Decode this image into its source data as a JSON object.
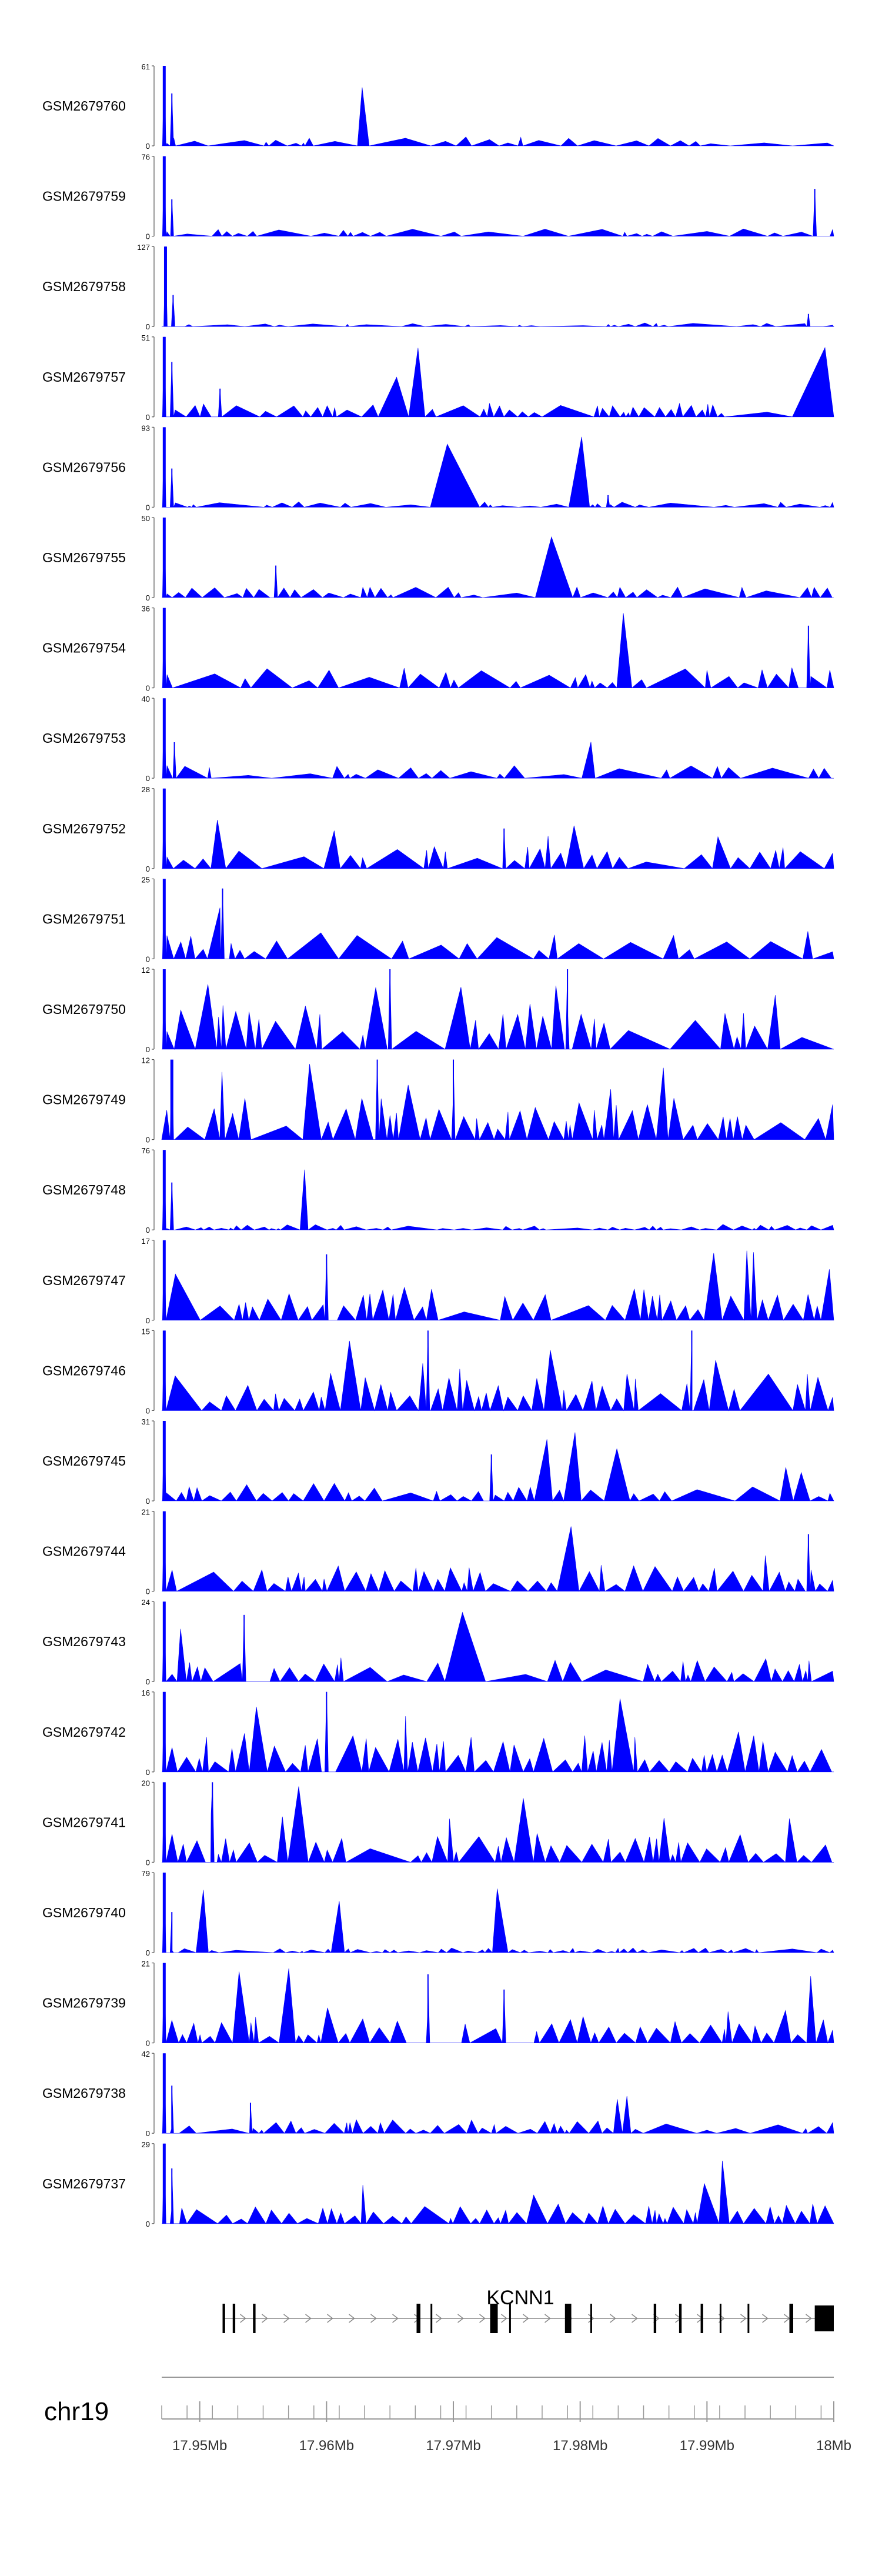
{
  "chart_data": {
    "type": "area",
    "title": "",
    "x_unit": "Mb",
    "xlim": [
      17.947,
      18.0
    ],
    "chromosome": "chr19",
    "gene": "KCNN1",
    "color": "#0000ff",
    "axis_ticks": [
      17.95,
      17.96,
      17.97,
      17.98,
      17.99,
      18.0
    ],
    "axis_labels": [
      "17.95Mb",
      "17.96Mb",
      "17.97Mb",
      "17.98Mb",
      "17.99Mb",
      "18Mb"
    ],
    "tracks": [
      {
        "name": "GSM2679760",
        "ymax": "61",
        "ymin": "0",
        "ymax_value": 61,
        "peak_frac": 0.1,
        "density": 0.55,
        "spike_frac": 0.05,
        "seed": 1,
        "peaks": [
          [
            17.9472,
            61
          ],
          [
            17.9478,
            40
          ]
        ]
      },
      {
        "name": "GSM2679759",
        "ymax": "76",
        "ymin": "0",
        "ymax_value": 76,
        "peak_frac": 0.08,
        "density": 0.65,
        "spike_frac": 0.05,
        "seed": 2,
        "peaks": [
          [
            17.9472,
            76
          ],
          [
            17.9478,
            35
          ],
          [
            17.9985,
            45
          ]
        ]
      },
      {
        "name": "GSM2679758",
        "ymax": "127",
        "ymin": "0",
        "ymax_value": 127,
        "peak_frac": 0.04,
        "density": 0.35,
        "spike_frac": 0.04,
        "seed": 3,
        "peaks": [
          [
            17.9473,
            127
          ],
          [
            17.9479,
            50
          ],
          [
            17.998,
            20
          ]
        ]
      },
      {
        "name": "GSM2679757",
        "ymax": "51",
        "ymin": "0",
        "ymax_value": 51,
        "peak_frac": 0.16,
        "density": 0.75,
        "spike_frac": 0.08,
        "seed": 4,
        "peaks": [
          [
            17.9472,
            51
          ],
          [
            17.9478,
            35
          ],
          [
            17.9516,
            18
          ]
        ]
      },
      {
        "name": "GSM2679756",
        "ymax": "93",
        "ymin": "0",
        "ymax_value": 93,
        "peak_frac": 0.06,
        "density": 0.7,
        "spike_frac": 0.04,
        "seed": 5,
        "peaks": [
          [
            17.9472,
            93
          ],
          [
            17.9478,
            45
          ],
          [
            17.9822,
            14
          ]
        ]
      },
      {
        "name": "GSM2679755",
        "ymax": "50",
        "ymin": "0",
        "ymax_value": 50,
        "peak_frac": 0.12,
        "density": 0.75,
        "spike_frac": 0.07,
        "seed": 6,
        "peaks": [
          [
            17.9472,
            50
          ],
          [
            17.956,
            20
          ]
        ]
      },
      {
        "name": "GSM2679754",
        "ymax": "36",
        "ymin": "0",
        "ymax_value": 36,
        "peak_frac": 0.22,
        "density": 0.65,
        "spike_frac": 0.09,
        "seed": 7,
        "peaks": [
          [
            17.9472,
            36
          ],
          [
            17.998,
            28
          ]
        ]
      },
      {
        "name": "GSM2679753",
        "ymax": "40",
        "ymin": "0",
        "ymax_value": 40,
        "peak_frac": 0.14,
        "density": 0.7,
        "spike_frac": 0.08,
        "seed": 8,
        "peaks": [
          [
            17.9472,
            40
          ],
          [
            17.948,
            18
          ]
        ]
      },
      {
        "name": "GSM2679752",
        "ymax": "28",
        "ymin": "0",
        "ymax_value": 28,
        "peak_frac": 0.24,
        "density": 0.7,
        "spike_frac": 0.1,
        "seed": 9,
        "peaks": [
          [
            17.9472,
            28
          ],
          [
            17.974,
            14
          ]
        ]
      },
      {
        "name": "GSM2679751",
        "ymax": "25",
        "ymin": "0",
        "ymax_value": 25,
        "peak_frac": 0.3,
        "density": 0.4,
        "spike_frac": 0.1,
        "seed": 10,
        "peaks": [
          [
            17.9472,
            25
          ],
          [
            17.9518,
            22
          ]
        ]
      },
      {
        "name": "GSM2679750",
        "ymax": "12",
        "ymin": "0",
        "ymax_value": 12,
        "peak_frac": 0.5,
        "density": 0.85,
        "spike_frac": 0.2,
        "seed": 11,
        "peaks": [
          [
            17.9472,
            12
          ],
          [
            17.965,
            12
          ],
          [
            17.979,
            12
          ]
        ]
      },
      {
        "name": "GSM2679749",
        "ymax": "12",
        "ymin": "0",
        "ymax_value": 12,
        "peak_frac": 0.45,
        "density": 0.85,
        "spike_frac": 0.2,
        "seed": 12,
        "peaks": [
          [
            17.9478,
            12
          ],
          [
            17.964,
            12
          ],
          [
            17.97,
            12
          ]
        ]
      },
      {
        "name": "GSM2679748",
        "ymax": "76",
        "ymin": "0",
        "ymax_value": 76,
        "peak_frac": 0.06,
        "density": 0.85,
        "spike_frac": 0.04,
        "seed": 13,
        "peaks": [
          [
            17.9472,
            76
          ],
          [
            17.9478,
            45
          ]
        ]
      },
      {
        "name": "GSM2679747",
        "ymax": "17",
        "ymin": "0",
        "ymax_value": 17,
        "peak_frac": 0.35,
        "density": 0.85,
        "spike_frac": 0.15,
        "seed": 14,
        "peaks": [
          [
            17.9472,
            17
          ],
          [
            17.96,
            14
          ]
        ]
      },
      {
        "name": "GSM2679746",
        "ymax": "15",
        "ymin": "0",
        "ymax_value": 15,
        "peak_frac": 0.42,
        "density": 0.8,
        "spike_frac": 0.15,
        "seed": 15,
        "peaks": [
          [
            17.9472,
            15
          ],
          [
            17.968,
            15
          ],
          [
            17.9888,
            15
          ]
        ]
      },
      {
        "name": "GSM2679745",
        "ymax": "31",
        "ymin": "0",
        "ymax_value": 31,
        "peak_frac": 0.2,
        "density": 0.8,
        "spike_frac": 0.09,
        "seed": 16,
        "peaks": [
          [
            17.9472,
            31
          ],
          [
            17.973,
            18
          ]
        ]
      },
      {
        "name": "GSM2679744",
        "ymax": "21",
        "ymin": "0",
        "ymax_value": 21,
        "peak_frac": 0.3,
        "density": 0.8,
        "spike_frac": 0.12,
        "seed": 17,
        "peaks": [
          [
            17.9472,
            21
          ],
          [
            17.998,
            15
          ]
        ]
      },
      {
        "name": "GSM2679743",
        "ymax": "24",
        "ymin": "0",
        "ymax_value": 24,
        "peak_frac": 0.26,
        "density": 0.75,
        "spike_frac": 0.1,
        "seed": 18,
        "peaks": [
          [
            17.9472,
            24
          ],
          [
            17.9535,
            20
          ]
        ]
      },
      {
        "name": "GSM2679742",
        "ymax": "16",
        "ymin": "0",
        "ymax_value": 16,
        "peak_frac": 0.42,
        "density": 0.9,
        "spike_frac": 0.18,
        "seed": 19,
        "peaks": [
          [
            17.9472,
            16
          ],
          [
            17.96,
            16
          ]
        ]
      },
      {
        "name": "GSM2679741",
        "ymax": "20",
        "ymin": "0",
        "ymax_value": 20,
        "peak_frac": 0.32,
        "density": 0.9,
        "spike_frac": 0.15,
        "seed": 20,
        "peaks": [
          [
            17.9472,
            20
          ],
          [
            17.951,
            20
          ]
        ]
      },
      {
        "name": "GSM2679740",
        "ymax": "79",
        "ymin": "0",
        "ymax_value": 79,
        "peak_frac": 0.05,
        "density": 0.8,
        "spike_frac": 0.04,
        "seed": 21,
        "peaks": [
          [
            17.9472,
            79
          ],
          [
            17.9478,
            40
          ]
        ]
      },
      {
        "name": "GSM2679739",
        "ymax": "21",
        "ymin": "0",
        "ymax_value": 21,
        "peak_frac": 0.3,
        "density": 0.85,
        "spike_frac": 0.12,
        "seed": 22,
        "peaks": [
          [
            17.9472,
            21
          ],
          [
            17.968,
            18
          ],
          [
            17.974,
            14
          ]
        ]
      },
      {
        "name": "GSM2679738",
        "ymax": "42",
        "ymin": "0",
        "ymax_value": 42,
        "peak_frac": 0.15,
        "density": 0.85,
        "spike_frac": 0.08,
        "seed": 23,
        "peaks": [
          [
            17.9472,
            42
          ],
          [
            17.9478,
            25
          ],
          [
            17.954,
            16
          ]
        ]
      },
      {
        "name": "GSM2679737",
        "ymax": "29",
        "ymin": "0",
        "ymax_value": 29,
        "peak_frac": 0.22,
        "density": 0.85,
        "spike_frac": 0.1,
        "seed": 24,
        "peaks": [
          [
            17.9472,
            29
          ],
          [
            17.9478,
            20
          ]
        ]
      }
    ],
    "gene_model": {
      "strand": "+",
      "start": 17.9518,
      "end": 18.0,
      "exons": [
        [
          17.9518,
          17.952
        ],
        [
          17.9526,
          17.9528
        ],
        [
          17.9542,
          17.9544
        ],
        [
          17.9671,
          17.9674
        ],
        [
          17.9682,
          17.9683
        ],
        [
          17.9729,
          17.9735
        ],
        [
          17.9744,
          17.9745
        ],
        [
          17.9788,
          17.9793
        ],
        [
          17.9808,
          17.9809
        ],
        [
          17.9858,
          17.986
        ],
        [
          17.9878,
          17.988
        ],
        [
          17.9895,
          17.9897
        ],
        [
          17.991,
          17.9911
        ],
        [
          17.9932,
          17.9933
        ],
        [
          17.9965,
          17.9968
        ],
        [
          17.9985,
          18.0
        ]
      ]
    }
  }
}
